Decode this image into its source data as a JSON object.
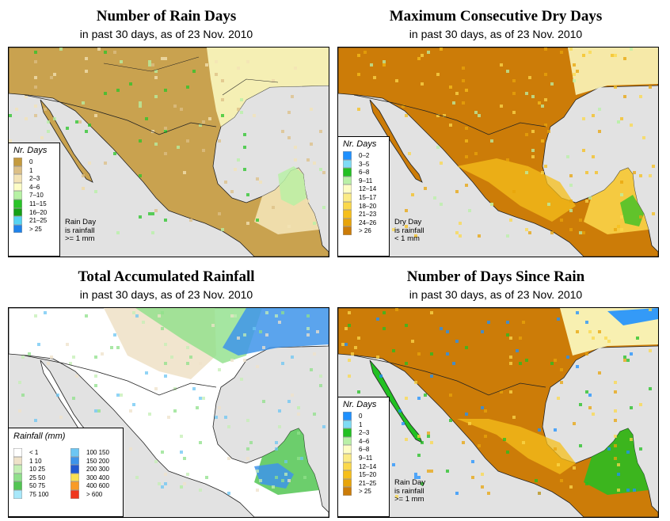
{
  "panels": [
    {
      "title": "Number of Rain Days",
      "subtitle": "in past 30 days, as of  23 Nov. 2010",
      "legend_title": "Nr. Days",
      "legend": [
        {
          "label": "0",
          "color": "#c49a3e"
        },
        {
          "label": "1",
          "color": "#dcbf86"
        },
        {
          "label": "2–3",
          "color": "#f3e3b5"
        },
        {
          "label": "4–6",
          "color": "#fdfdc6"
        },
        {
          "label": "7–10",
          "color": "#b6f1a4"
        },
        {
          "label": "11–15",
          "color": "#28c428"
        },
        {
          "label": "16–20",
          "color": "#15a015"
        },
        {
          "label": "21–25",
          "color": "#55d3f2"
        },
        {
          "label": "> 25",
          "color": "#1e82ea"
        }
      ],
      "note": [
        "Rain Day",
        "is rainfall",
        ">= 1 mm"
      ]
    },
    {
      "title": "Maximum Consecutive Dry Days",
      "subtitle": "in past 30 days, as of  23 Nov. 2010",
      "legend_title": "Nr. Days",
      "legend": [
        {
          "label": "0–2",
          "color": "#1e90ff"
        },
        {
          "label": "3–5",
          "color": "#7fdcf5"
        },
        {
          "label": "6–8",
          "color": "#22c022"
        },
        {
          "label": "9–11",
          "color": "#b9f0a7"
        },
        {
          "label": "12–14",
          "color": "#fdfdc4"
        },
        {
          "label": "15–17",
          "color": "#fbeb86"
        },
        {
          "label": "18–20",
          "color": "#fbd84b"
        },
        {
          "label": "21–23",
          "color": "#f6bf1b"
        },
        {
          "label": "24–26",
          "color": "#e8a409"
        },
        {
          "label": "> 26",
          "color": "#cc7c08"
        }
      ],
      "note": [
        "Dry Day",
        "is rainfall",
        "< 1 mm"
      ]
    },
    {
      "title": "Total Accumulated Rainfall",
      "subtitle": "in past 30 days, as of  23 Nov. 2010",
      "legend_title": "Rainfall (mm)",
      "legend_col1": [
        {
          "label": "< 1",
          "color": "#ffffff"
        },
        {
          "label": "1   10",
          "color": "#efe2c9"
        },
        {
          "label": "10   25",
          "color": "#c4efb4"
        },
        {
          "label": "25   50",
          "color": "#8fe08a"
        },
        {
          "label": "50   75",
          "color": "#52c552"
        },
        {
          "label": "75   100",
          "color": "#a8e8fa"
        }
      ],
      "legend_col2": [
        {
          "label": "100   150",
          "color": "#6cc6f3"
        },
        {
          "label": "150   200",
          "color": "#3e94ea"
        },
        {
          "label": "200   300",
          "color": "#2359d0"
        },
        {
          "label": "300   400",
          "color": "#fbe152"
        },
        {
          "label": "400   600",
          "color": "#f99b25"
        },
        {
          "label": "> 600",
          "color": "#f0361e"
        }
      ]
    },
    {
      "title": "Number of Days Since Rain",
      "subtitle": "in past 30 days, as of  23 Nov. 2010",
      "legend_title": "Nr. Days",
      "legend": [
        {
          "label": "0",
          "color": "#1e90ff"
        },
        {
          "label": "1",
          "color": "#7fdcf5"
        },
        {
          "label": "2–3",
          "color": "#22c022"
        },
        {
          "label": "4–6",
          "color": "#b9f0a7"
        },
        {
          "label": "6–8",
          "color": "#fdfdc4"
        },
        {
          "label": "9–11",
          "color": "#fbeb86"
        },
        {
          "label": "12–14",
          "color": "#fbd84b"
        },
        {
          "label": "15–20",
          "color": "#f6bf1b"
        },
        {
          "label": "21–25",
          "color": "#e8a409"
        },
        {
          "label": "> 25",
          "color": "#cc7c08"
        }
      ],
      "note": [
        "Rain Day",
        "is rainfall",
        ">= 1 mm"
      ]
    }
  ]
}
